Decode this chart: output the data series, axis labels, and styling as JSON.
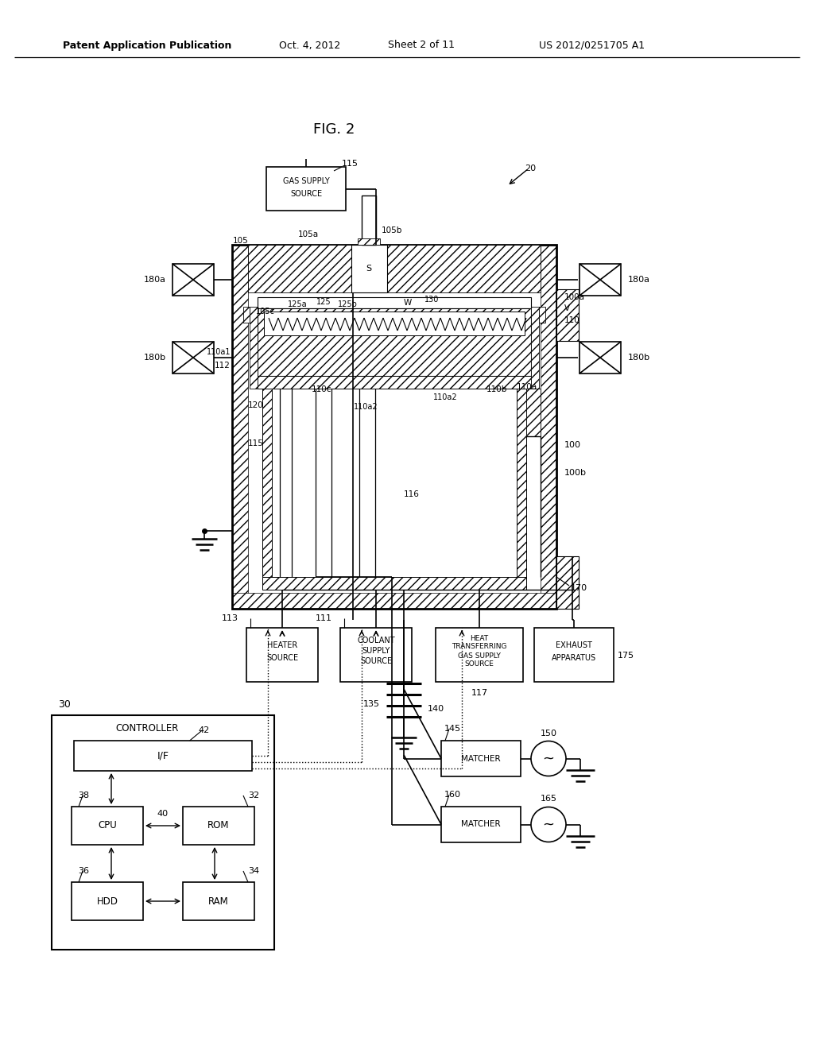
{
  "bg_color": "#ffffff",
  "lc": "#000000",
  "header_left": "Patent Application Publication",
  "header_mid1": "Oct. 4, 2012",
  "header_mid2": "Sheet 2 of 11",
  "header_right": "US 2012/0251705 A1",
  "fig_label": "FIG. 2"
}
